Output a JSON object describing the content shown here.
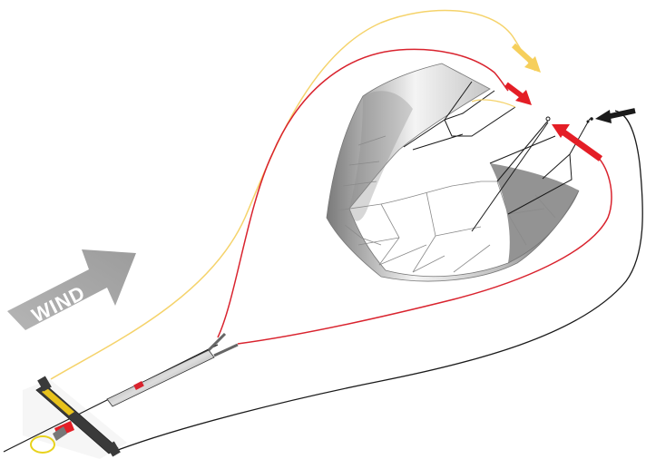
{
  "diagram": {
    "wind_label": "WIND",
    "colors": {
      "yellow_line": "#f5d36b",
      "yellow_arrow": "#f6cf5c",
      "red_line": "#d9232e",
      "red_arrow": "#e41e26",
      "black_line": "#1a1a1a",
      "wind_arrow": "#a9a9a9",
      "kite_dark": "#6e6e6e",
      "kite_light": "#f2f2f2",
      "bar_yellow": "#e8c21c"
    }
  }
}
